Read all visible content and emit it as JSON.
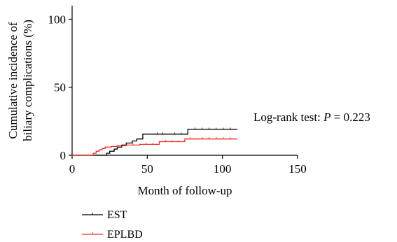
{
  "chart_data": {
    "type": "line",
    "subtype": "kaplan-meier-step",
    "title": "",
    "xlabel": "Month of follow-up",
    "ylabel_lines": [
      "Cumulative incidence of",
      "biliary complications (%)"
    ],
    "xlim": [
      0,
      150
    ],
    "ylim": [
      0,
      110
    ],
    "xticks": [
      0,
      50,
      100,
      150
    ],
    "yticks": [
      0,
      50,
      100
    ],
    "grid": false,
    "legend_position": "bottom-left",
    "annotation": {
      "prefix": "Log-rank test: ",
      "italic": "P",
      "suffix": " = 0.223"
    },
    "series": [
      {
        "name": "EST",
        "color": "#000000",
        "x": [
          0,
          21,
          23,
          25,
          28,
          30,
          33,
          36,
          40,
          43,
          47,
          53,
          64,
          77,
          110
        ],
        "y": [
          0,
          0,
          1.5,
          3,
          4.5,
          6,
          7.5,
          9,
          10.5,
          12,
          15.5,
          15.5,
          15.5,
          19,
          19
        ]
      },
      {
        "name": "EPLBD",
        "color": "#e8302a",
        "x": [
          0,
          12,
          14,
          16,
          18,
          20,
          22,
          26,
          30,
          36,
          45,
          58,
          75,
          82,
          110
        ],
        "y": [
          0,
          0,
          1.5,
          3,
          4,
          5,
          6,
          6.5,
          7,
          7.5,
          8,
          10,
          12,
          12,
          12
        ]
      }
    ]
  }
}
